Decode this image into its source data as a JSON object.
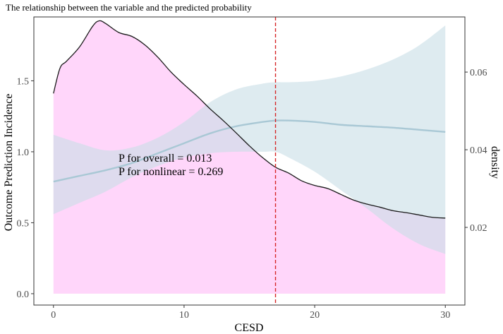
{
  "chart_data": {
    "type": "line",
    "title": "The relationship between the variable and the predicted probability",
    "xlabel": "CESD",
    "ylabel": "Outcome Prediction Incidence",
    "y2label": "density",
    "xlim": [
      -1.5,
      31.5
    ],
    "ylim": [
      -0.08,
      1.95
    ],
    "y2lim": [
      0.0,
      0.0742
    ],
    "x_ticks": [
      0,
      10,
      20,
      30
    ],
    "x_tick_labels": [
      "0",
      "10",
      "20",
      "30"
    ],
    "y_ticks": [
      0.0,
      0.5,
      1.0,
      1.5
    ],
    "y_tick_labels": [
      "0.0",
      "0.5",
      "1.0",
      "1.5"
    ],
    "y2_ticks": [
      0.02,
      0.04,
      0.06
    ],
    "y2_tick_labels": [
      "0.02",
      "0.04",
      "0.06"
    ],
    "reference_line": {
      "x": 17,
      "color": "#d62728",
      "style": "dashed"
    },
    "annotations": [
      "P for overall = 0.013",
      "P for nonlinear = 0.269"
    ],
    "colors": {
      "density_fill": "#ffd6fa",
      "density_line": "#1a1a1a",
      "ci_fill": "#c9dfe6",
      "curve": "#a9c8d5"
    },
    "series": [
      {
        "name": "density",
        "axis": "right",
        "x": [
          0,
          0.5,
          1,
          2,
          3,
          3.5,
          4,
          5,
          6,
          7,
          8,
          9,
          10,
          11,
          12,
          13,
          14,
          15,
          16,
          17,
          18,
          19,
          20,
          21,
          22,
          23,
          24,
          25,
          26,
          27,
          28,
          29,
          30
        ],
        "values": [
          0.0545,
          0.061,
          0.0628,
          0.0665,
          0.0718,
          0.0732,
          0.0725,
          0.0702,
          0.0692,
          0.067,
          0.0638,
          0.06,
          0.0568,
          0.0538,
          0.0505,
          0.0475,
          0.0443,
          0.041,
          0.038,
          0.0355,
          0.034,
          0.032,
          0.0308,
          0.03,
          0.0285,
          0.027,
          0.026,
          0.0252,
          0.0243,
          0.0238,
          0.0232,
          0.0226,
          0.0224
        ]
      },
      {
        "name": "predicted",
        "axis": "left",
        "x": [
          0,
          2,
          4,
          6,
          8,
          10,
          12,
          14,
          16,
          17,
          18,
          20,
          22,
          24,
          26,
          28,
          30
        ],
        "values": [
          0.79,
          0.83,
          0.87,
          0.92,
          0.99,
          1.06,
          1.13,
          1.18,
          1.21,
          1.22,
          1.22,
          1.21,
          1.19,
          1.18,
          1.17,
          1.155,
          1.14
        ],
        "ci_upper": [
          1.12,
          1.06,
          1.01,
          1.03,
          1.1,
          1.21,
          1.35,
          1.44,
          1.48,
          1.49,
          1.49,
          1.5,
          1.53,
          1.58,
          1.65,
          1.75,
          1.89
        ],
        "ci_lower": [
          0.56,
          0.64,
          0.72,
          0.82,
          0.9,
          0.96,
          0.99,
          1.0,
          1.0,
          1.0,
          0.96,
          0.86,
          0.73,
          0.6,
          0.46,
          0.35,
          0.28
        ]
      }
    ]
  }
}
